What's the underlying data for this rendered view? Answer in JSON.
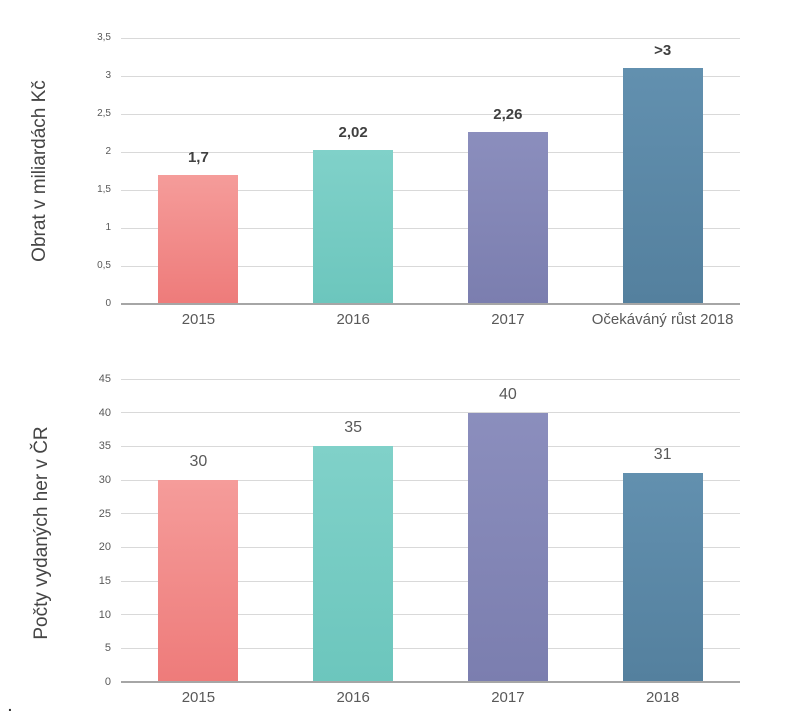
{
  "page": {
    "background": "#FFFFFF",
    "caption_dot": "."
  },
  "chart_data": [
    {
      "type": "bar",
      "title": "",
      "ylabel": "Obrat v miliardách Kč",
      "xlabel": "",
      "categories": [
        "2015",
        "2016",
        "2017",
        "Očekáváný růst 2018"
      ],
      "values": [
        1.7,
        2.02,
        2.26,
        3.1
      ],
      "value_labels": [
        "1,7",
        "2,02",
        "2,26",
        ">3"
      ],
      "ylim": [
        0,
        3.5
      ],
      "ytick_step": 0.5,
      "ytick_labels": [
        "0",
        "0,5",
        "1",
        "1,5",
        "2",
        "2,5",
        "3",
        "3,5"
      ],
      "grid": true,
      "legend": "none",
      "label_bold": true,
      "label_color": "#404040",
      "tick_color": "#595959",
      "grid_color": "#D9D9D9",
      "axis_color": "#A6A6A6",
      "bar_colors": [
        {
          "name": "salmon",
          "top": "#F59C9A",
          "bottom": "#EE7B7A"
        },
        {
          "name": "teal",
          "top": "#80D1C9",
          "bottom": "#6CC6BD"
        },
        {
          "name": "purple",
          "top": "#8B8EBD",
          "bottom": "#7B7EAF"
        },
        {
          "name": "steel-blue",
          "top": "#6290AF",
          "bottom": "#54809E"
        }
      ]
    },
    {
      "type": "bar",
      "title": "",
      "ylabel": "Počty vydaných her v ČR",
      "xlabel": "",
      "categories": [
        "2015",
        "2016",
        "2017",
        "2018"
      ],
      "values": [
        30,
        35,
        40,
        31
      ],
      "value_labels": [
        "30",
        "35",
        "40",
        "31"
      ],
      "ylim": [
        0,
        45
      ],
      "ytick_step": 5,
      "ytick_labels": [
        "0",
        "5",
        "10",
        "15",
        "20",
        "25",
        "30",
        "35",
        "40",
        "45"
      ],
      "grid": true,
      "legend": "none",
      "label_bold": false,
      "label_color": "#595959",
      "tick_color": "#595959",
      "grid_color": "#D9D9D9",
      "axis_color": "#A6A6A6",
      "bar_colors": [
        {
          "name": "salmon",
          "top": "#F59C9A",
          "bottom": "#EE7B7A"
        },
        {
          "name": "teal",
          "top": "#80D1C9",
          "bottom": "#6CC6BD"
        },
        {
          "name": "purple",
          "top": "#8B8EBD",
          "bottom": "#7B7EAF"
        },
        {
          "name": "steel-blue",
          "top": "#6290AF",
          "bottom": "#54809E"
        }
      ]
    }
  ]
}
